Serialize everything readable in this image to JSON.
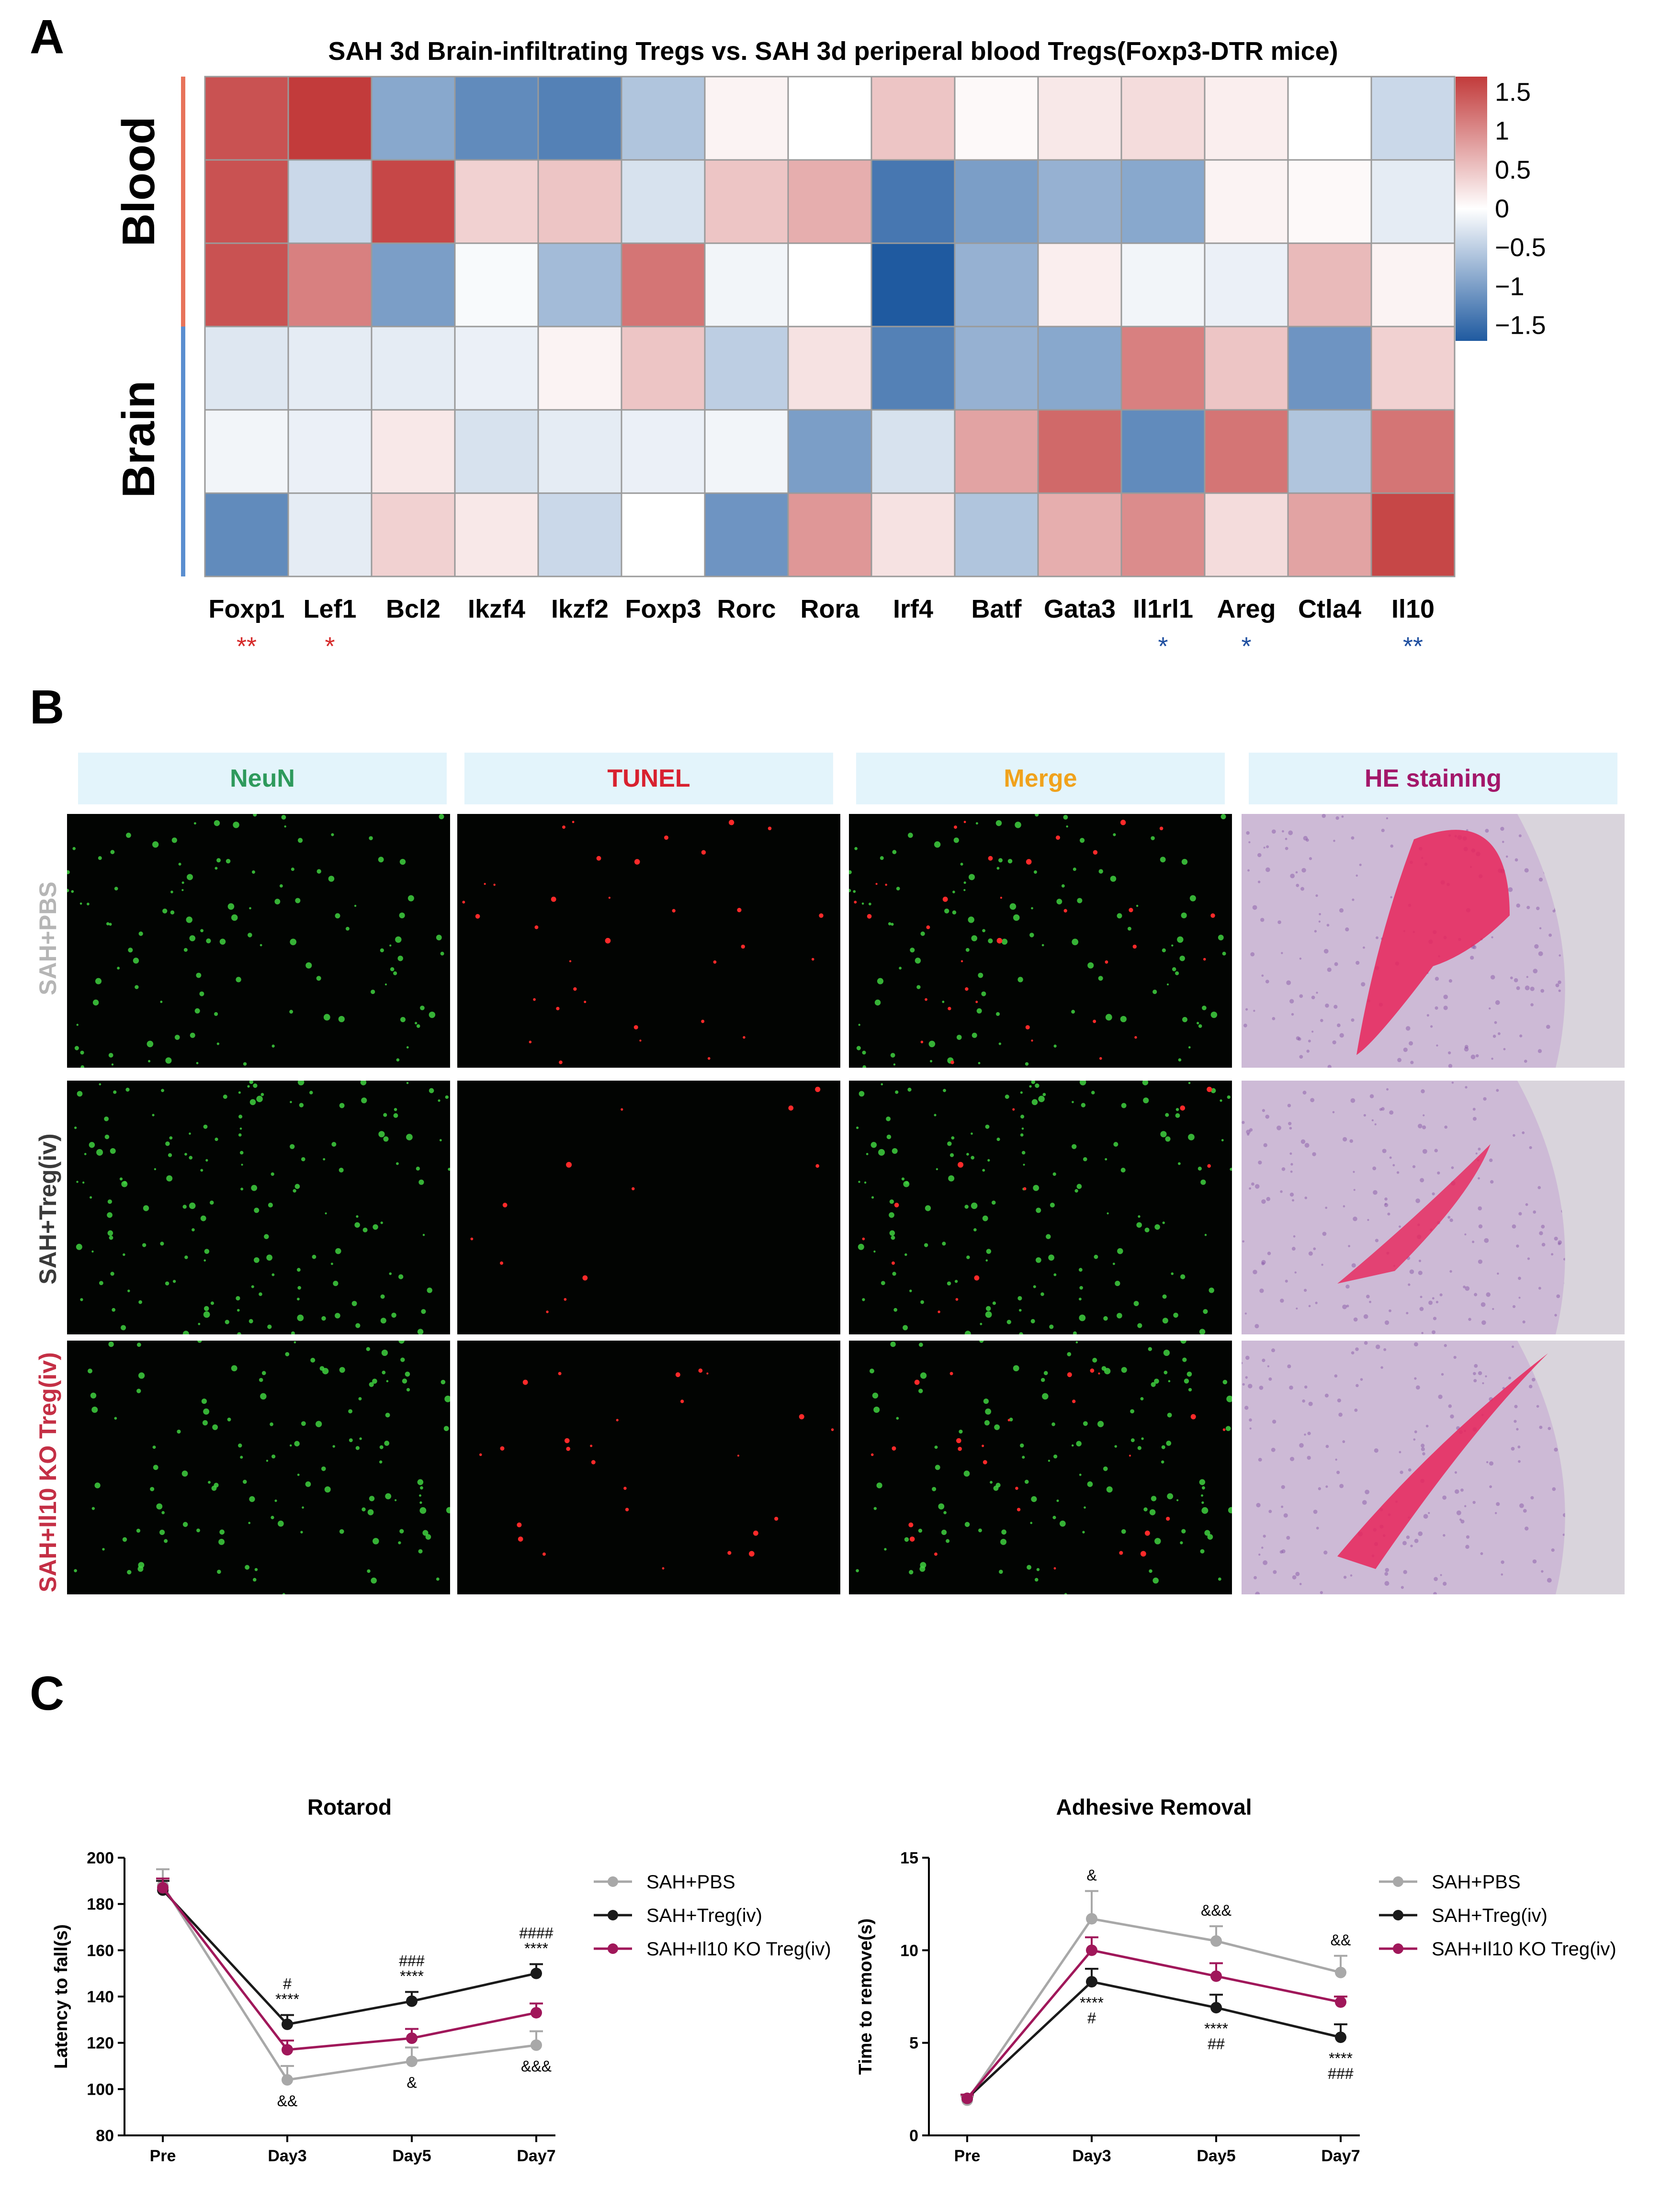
{
  "panel_a": {
    "letter": "A",
    "title": "SAH 3d Brain-infiltrating Tregs vs. SAH 3d periperal blood Tregs(Foxp3-DTR mice)",
    "group_labels": [
      "Blood",
      "Brain"
    ],
    "group_colors": [
      "#e8735a",
      "#5a8ed0"
    ],
    "scale_ticks": [
      "1.5",
      "1",
      "0.5",
      "0",
      "−0.5",
      "−1",
      "−1.5"
    ],
    "scale_colors": {
      "high": "#c23b3b",
      "mid": "#ffffff",
      "low": "#1f5aa0"
    },
    "genes": [
      "Foxp1",
      "Lef1",
      "Bcl2",
      "Ikzf4",
      "Ikzf2",
      "Foxp3",
      "Rorc",
      "Rora",
      "Irf4",
      "Batf",
      "Gata3",
      "Il1rl1",
      "Areg",
      "Ctla4",
      "Il10"
    ],
    "significance": [
      {
        "gene": "Foxp1",
        "mark": "**",
        "color": "#d62b2b"
      },
      {
        "gene": "Lef1",
        "mark": "*",
        "color": "#d62b2b"
      },
      {
        "gene": "Il1rl1",
        "mark": "*",
        "color": "#1f4fa0"
      },
      {
        "gene": "Areg",
        "mark": "*",
        "color": "#1f4fa0"
      },
      {
        "gene": "Il10",
        "mark": "**",
        "color": "#1f4fa0"
      }
    ]
  },
  "chart_data": [
    {
      "type": "heatmap",
      "title": "SAH 3d Brain-infiltrating Tregs vs. SAH 3d periperal blood Tregs(Foxp3-DTR mice)",
      "columns": [
        "Foxp1",
        "Lef1",
        "Bcl2",
        "Ikzf4",
        "Ikzf2",
        "Foxp3",
        "Rorc",
        "Rora",
        "Irf4",
        "Batf",
        "Gata3",
        "Il1rl1",
        "Areg",
        "Ctla4",
        "Il10"
      ],
      "row_groups": [
        "Blood",
        "Blood",
        "Blood",
        "Brain",
        "Brain",
        "Brain"
      ],
      "color_range": [
        -1.7,
        1.7
      ],
      "values": [
        [
          1.5,
          1.7,
          -0.9,
          -1.2,
          -1.3,
          -0.6,
          0.1,
          0.0,
          0.5,
          0.05,
          0.2,
          0.3,
          0.15,
          0.0,
          -0.4
        ],
        [
          1.5,
          -0.4,
          1.6,
          0.4,
          0.5,
          -0.3,
          0.5,
          0.7,
          -1.4,
          -1.0,
          -0.8,
          -0.9,
          0.1,
          0.05,
          -0.2
        ],
        [
          1.5,
          1.1,
          -1.0,
          -0.05,
          -0.7,
          1.2,
          -0.1,
          0.0,
          -1.8,
          -0.8,
          0.15,
          -0.1,
          -0.15,
          0.6,
          0.1
        ],
        [
          -0.25,
          -0.2,
          -0.2,
          -0.15,
          0.1,
          0.5,
          -0.5,
          0.25,
          -1.3,
          -0.8,
          -0.9,
          1.1,
          0.5,
          -1.1,
          0.4
        ],
        [
          -0.1,
          -0.15,
          0.2,
          -0.3,
          -0.2,
          -0.15,
          -0.1,
          -1.0,
          -0.3,
          0.8,
          1.3,
          -1.2,
          1.2,
          -0.6,
          1.2
        ],
        [
          -1.2,
          -0.2,
          0.4,
          0.2,
          -0.4,
          0.0,
          -1.1,
          0.9,
          0.25,
          -0.6,
          0.7,
          1.0,
          0.3,
          0.8,
          1.6
        ]
      ]
    },
    {
      "type": "line",
      "title": "Rotarod",
      "xlabel": "",
      "ylabel": "Latency to fall(s)",
      "categories": [
        "Pre",
        "Day3",
        "Day5",
        "Day7"
      ],
      "ylim": [
        80,
        200
      ],
      "yticks": [
        80,
        100,
        120,
        140,
        160,
        180,
        200
      ],
      "series": [
        {
          "name": "SAH+PBS",
          "color": "#a8a8a8",
          "values": [
            188,
            104,
            112,
            119
          ],
          "errors": [
            7,
            6,
            6,
            6
          ]
        },
        {
          "name": "SAH+Treg(iv)",
          "color": "#1a1a1a",
          "values": [
            186,
            128,
            138,
            150
          ],
          "errors": [
            4,
            4,
            4,
            4
          ]
        },
        {
          "name": "SAH+Il10 KO Treg(iv)",
          "color": "#a0175a",
          "values": [
            187,
            117,
            122,
            133
          ],
          "errors": [
            4,
            4,
            4,
            4
          ]
        }
      ],
      "annotations": [
        {
          "x": "Day3",
          "above": [
            "#",
            "****"
          ],
          "below": [
            "&&"
          ]
        },
        {
          "x": "Day5",
          "above": [
            "###",
            "****"
          ],
          "below": [
            "&"
          ]
        },
        {
          "x": "Day7",
          "above": [
            "####",
            "****"
          ],
          "below": [
            "&&&"
          ]
        }
      ]
    },
    {
      "type": "line",
      "title": "Adhesive Removal",
      "xlabel": "",
      "ylabel": "Time to remove(s)",
      "categories": [
        "Pre",
        "Day3",
        "Day5",
        "Day7"
      ],
      "ylim": [
        0,
        15
      ],
      "yticks": [
        0,
        5,
        10,
        15
      ],
      "series": [
        {
          "name": "SAH+PBS",
          "color": "#a8a8a8",
          "values": [
            1.9,
            11.7,
            10.5,
            8.8
          ],
          "errors": [
            0.2,
            1.5,
            0.8,
            0.9
          ]
        },
        {
          "name": "SAH+Treg(iv)",
          "color": "#1a1a1a",
          "values": [
            2.0,
            8.3,
            6.9,
            5.3
          ],
          "errors": [
            0.2,
            0.7,
            0.7,
            0.7
          ]
        },
        {
          "name": "SAH+Il10 KO Treg(iv)",
          "color": "#a0175a",
          "values": [
            2.0,
            10.0,
            8.6,
            7.2
          ],
          "errors": [
            0.2,
            0.7,
            0.7,
            0.3
          ]
        }
      ],
      "annotations": [
        {
          "x": "Day3",
          "above": [
            "&"
          ],
          "below": [
            "****",
            "#"
          ]
        },
        {
          "x": "Day5",
          "above": [
            "&&&"
          ],
          "below": [
            "****",
            "##"
          ]
        },
        {
          "x": "Day7",
          "above": [
            "&&"
          ],
          "below": [
            "****",
            "###"
          ]
        }
      ]
    }
  ],
  "panel_b": {
    "letter": "B",
    "columns": [
      {
        "label": "NeuN",
        "color": "#2e9a5c"
      },
      {
        "label": "TUNEL",
        "color": "#d8212f"
      },
      {
        "label": "Merge",
        "color": "#f0a21c"
      },
      {
        "label": "HE staining",
        "color": "#a3176a"
      }
    ],
    "rows": [
      {
        "label": "SAH+PBS",
        "color": "#b5b5b5",
        "neun_density": 110,
        "tunel_density": 34
      },
      {
        "label": "SAH+Treg(iv)",
        "color": "#3a3a3a",
        "neun_density": 150,
        "tunel_density": 12
      },
      {
        "label": "SAH+Il10 KO Treg(iv)",
        "color": "#c42f45",
        "neun_density": 120,
        "tunel_density": 26
      }
    ]
  },
  "panel_c": {
    "letter": "C",
    "legend": [
      "SAH+PBS",
      "SAH+Treg(iv)",
      "SAH+Il10 KO Treg(iv)"
    ]
  }
}
